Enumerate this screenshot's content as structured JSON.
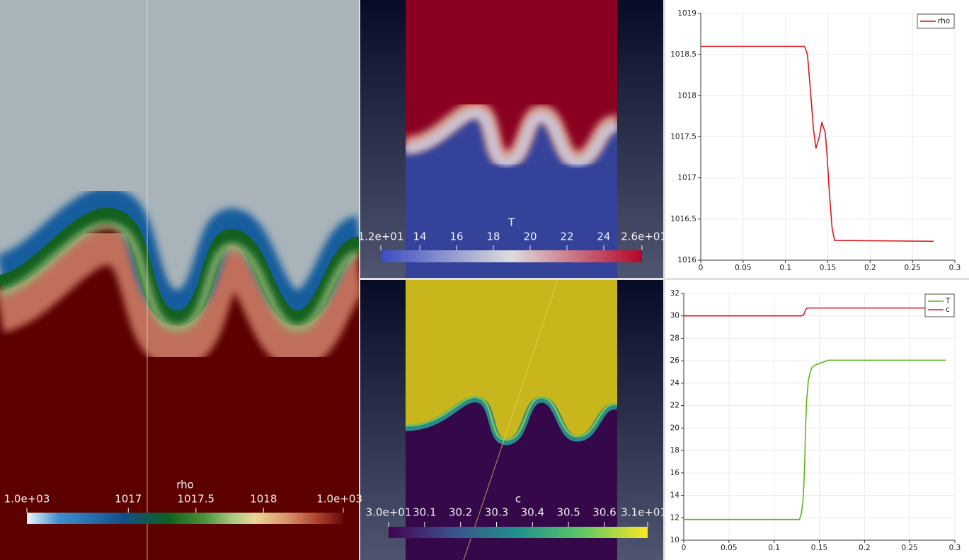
{
  "colorbars": [
    {
      "title": "rho",
      "ticks": [
        {
          "value": 1016.25,
          "label": "1.0e+03"
        },
        1017,
        1017.5,
        1018,
        {
          "value": 1018.59,
          "label": "1.0e+03"
        }
      ]
    },
    {
      "title": "T",
      "ticks": [
        {
          "value": 11.88,
          "label": "1.2e+01"
        },
        14,
        16,
        18,
        20,
        22,
        24,
        {
          "value": 26.08,
          "label": "2.6e+01"
        }
      ]
    },
    {
      "title": "c",
      "ticks": [
        {
          "value": 30.0,
          "label": "3.0e+01"
        },
        30.1,
        30.2,
        30.3,
        30.4,
        30.5,
        30.6,
        {
          "value": 30.72,
          "label": "3.1e+01"
        }
      ]
    }
  ],
  "chart_data": [
    {
      "type": "line",
      "grid": true,
      "legend": "upper right",
      "x": [
        0,
        0.1225,
        0.126,
        0.13,
        0.133,
        0.136,
        0.14,
        0.143,
        0.147,
        0.149,
        0.152,
        0.155,
        0.158,
        0.275
      ],
      "series": [
        {
          "name": "rho",
          "color": "#d7191c",
          "values": [
            1018.6,
            1018.6,
            1018.5,
            1018.0,
            1017.6,
            1017.36,
            1017.5,
            1017.68,
            1017.55,
            1017.3,
            1016.8,
            1016.4,
            1016.24,
            1016.23
          ]
        }
      ],
      "xlim": [
        0,
        0.3
      ],
      "xticks": [
        0,
        0.05,
        0.1,
        0.15,
        0.2,
        0.25,
        0.3
      ],
      "ylim": [
        1016,
        1019
      ],
      "yticks": [
        1016,
        1016.5,
        1017,
        1017.5,
        1018,
        1018.5,
        1019
      ]
    },
    {
      "type": "line",
      "grid": true,
      "legend": "upper right",
      "x": [
        0,
        0.128,
        0.13,
        0.132,
        0.133,
        0.134,
        0.135,
        0.136,
        0.138,
        0.14,
        0.142,
        0.145,
        0.15,
        0.155,
        0.16,
        0.29
      ],
      "series": [
        {
          "name": "T",
          "color": "#5fb31e",
          "values": [
            11.85,
            11.85,
            12.3,
            13.5,
            15,
            17.5,
            20.5,
            22.5,
            24.3,
            25.0,
            25.4,
            25.6,
            25.75,
            25.9,
            26.05,
            26.05
          ]
        },
        {
          "name": "c",
          "color": "#d7191c",
          "values": [
            30.0,
            30.0,
            30.0,
            30.05,
            30.15,
            30.35,
            30.55,
            30.68,
            30.7,
            30.7,
            30.7,
            30.7,
            30.7,
            30.7,
            30.7,
            30.7
          ]
        }
      ],
      "xlim": [
        0,
        0.3
      ],
      "xticks": [
        0,
        0.05,
        0.1,
        0.15,
        0.2,
        0.25,
        0.3
      ],
      "ylim": [
        10,
        32
      ],
      "yticks": [
        10,
        12,
        14,
        16,
        18,
        20,
        22,
        24,
        26,
        28,
        30,
        32
      ]
    }
  ]
}
